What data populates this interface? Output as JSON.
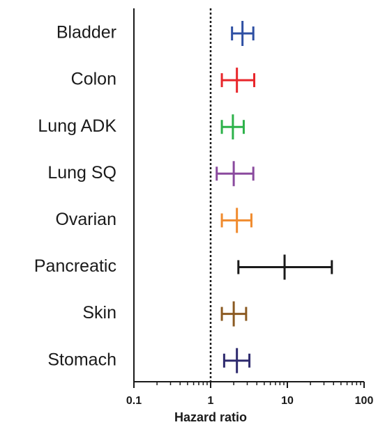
{
  "chart_data": {
    "type": "forest",
    "categories": [
      "Bladder",
      "Colon",
      "Lung ADK",
      "Lung SQ",
      "Ovarian",
      "Pancreatic",
      "Skin",
      "Stomach"
    ],
    "values": [
      2.6,
      2.2,
      1.95,
      2.0,
      2.2,
      9.2,
      2.0,
      2.2
    ],
    "low": [
      1.9,
      1.4,
      1.4,
      1.2,
      1.4,
      2.3,
      1.4,
      1.5
    ],
    "high": [
      3.6,
      3.7,
      2.7,
      3.6,
      3.4,
      38,
      2.9,
      3.2
    ],
    "colors": [
      "#2e4fa3",
      "#e8262b",
      "#2db24a",
      "#8a4a9e",
      "#f08b2e",
      "#1a1a1a",
      "#8b5a22",
      "#2e2a6e"
    ],
    "xlabel": "Hazard ratio",
    "xlim": [
      0.1,
      100
    ],
    "xticks": [
      0.1,
      1,
      10,
      100
    ],
    "log_scale": true,
    "reference_line": 1
  }
}
